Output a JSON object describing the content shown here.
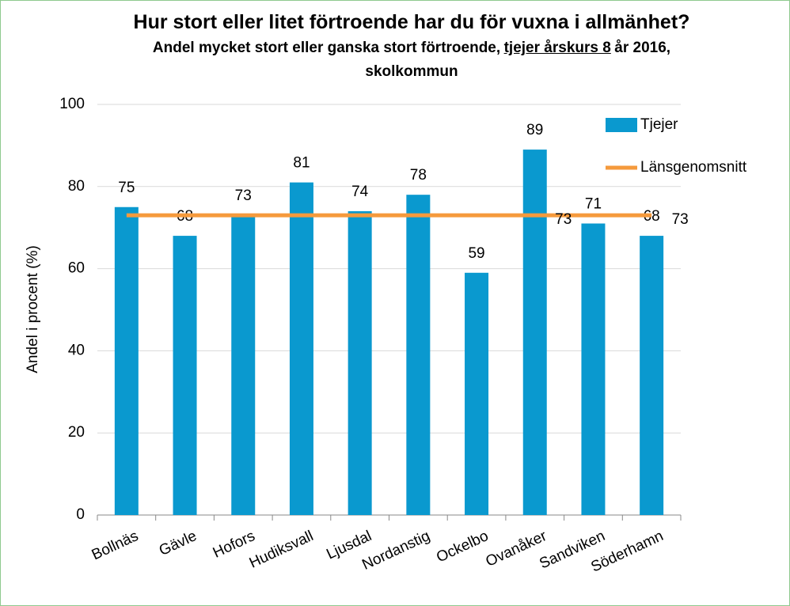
{
  "chart_data": {
    "type": "bar",
    "title": "Hur stort eller litet förtroende har du för vuxna i allmänhet?",
    "subtitle": [
      "Andel mycket stort eller ganska stort förtroende,",
      "tjejer årskurs 8",
      "år 2016, skolkommun"
    ],
    "ylabel": "Andel i procent (%)",
    "categories": [
      "Bollnäs",
      "Gävle",
      "Hofors",
      "Hudiksvall",
      "Ljusdal",
      "Nordanstig",
      "Ockelbo",
      "Ovanåker",
      "Sandviken",
      "Söderhamn"
    ],
    "series": [
      {
        "name": "Tjejer",
        "type": "bar",
        "color": "#0a99cf",
        "values": [
          75,
          68,
          73,
          81,
          74,
          78,
          59,
          89,
          71,
          68
        ]
      },
      {
        "name": "Länsgenomsnitt",
        "type": "line",
        "color": "#f59a3c",
        "values": [
          73,
          73,
          73,
          73,
          73,
          73,
          73,
          73,
          73,
          73
        ],
        "value_labels": [
          null,
          null,
          null,
          null,
          null,
          null,
          null,
          "73",
          null,
          "73"
        ]
      }
    ],
    "ylim": [
      0,
      100
    ],
    "yticks": [
      0,
      20,
      40,
      60,
      80,
      100
    ],
    "grid": true,
    "legend": "top-right"
  }
}
